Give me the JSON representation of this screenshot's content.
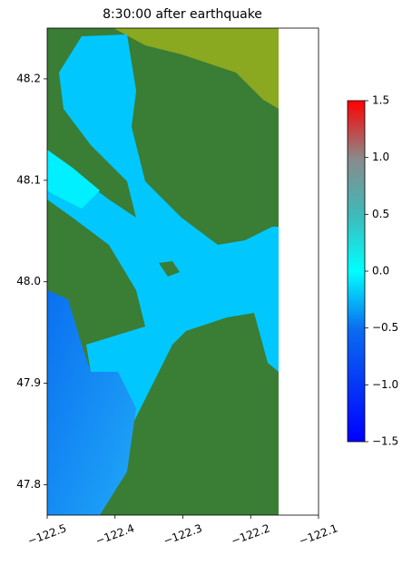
{
  "chart_data": {
    "type": "map",
    "title": "8:30:00 after earthquake",
    "xlim": [
      -122.5,
      -122.1
    ],
    "xticks": [
      {
        "value": -122.5,
        "label": "−122.5"
      },
      {
        "value": -122.4,
        "label": "−122.4"
      },
      {
        "value": -122.3,
        "label": "−122.3"
      },
      {
        "value": -122.2,
        "label": "−122.2"
      },
      {
        "value": -122.1,
        "label": "−122.1"
      }
    ],
    "ylim": [
      47.77,
      48.25
    ],
    "yticks": [
      47.8,
      47.9,
      {
        "value": 48.0,
        "label": "48.0"
      },
      48.1,
      48.2
    ],
    "colorbar": {
      "lim": [
        -1.5,
        1.5
      ],
      "ticks": [
        {
          "value": -1.5,
          "label": "−1.5"
        },
        {
          "value": -1.0,
          "label": "−1.0"
        },
        {
          "value": -0.5,
          "label": "−0.5"
        },
        {
          "value": 0.0,
          "label": "0.0"
        },
        0.5,
        {
          "value": 1.0,
          "label": "1.0"
        },
        1.5
      ]
    }
  }
}
